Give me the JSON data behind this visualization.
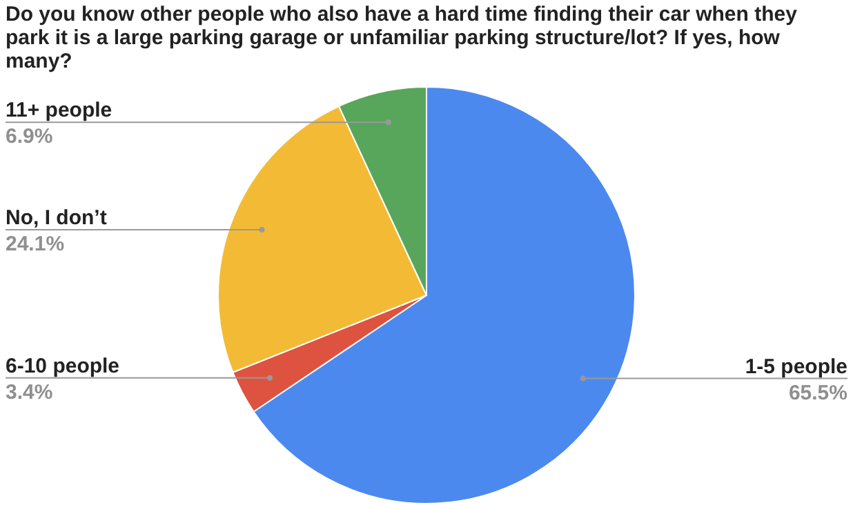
{
  "chart_data": {
    "type": "pie",
    "title": "Do you know other people who also have a hard time finding their car when they park it is a large parking garage or unfamiliar parking structure/lot? If yes, how many?",
    "categories": [
      "1-5 people",
      "6-10 people",
      "No, I don’t",
      "11+ people"
    ],
    "values": [
      65.5,
      3.4,
      24.1,
      6.9
    ],
    "value_labels": [
      "65.5%",
      "3.4%",
      "24.1%",
      "6.9%"
    ],
    "colors": [
      "#4c89ee",
      "#de5240",
      "#f3bb35",
      "#57a65b"
    ]
  }
}
